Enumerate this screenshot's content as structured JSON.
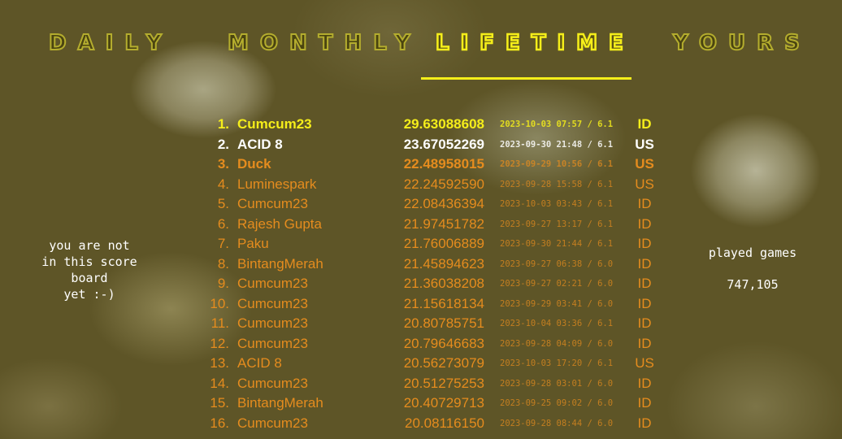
{
  "tabs": [
    {
      "label": "DAILY",
      "active": false
    },
    {
      "label": "MONTHLY",
      "active": false
    },
    {
      "label": "LIFETIME",
      "active": true
    },
    {
      "label": "YOURS",
      "active": false
    }
  ],
  "colors": {
    "active": "#f5ee1a",
    "first": "#f5ee1a",
    "second": "#ffffff",
    "rest": "#e58c1e"
  },
  "status": {
    "line1": "you are not",
    "line2": "in this score",
    "line3": "board",
    "line4": "yet :-)"
  },
  "played": {
    "label": "played games",
    "value": "747,105"
  },
  "rows": [
    {
      "rank": "1.",
      "name": "Cumcum23",
      "score": "29.63088608",
      "date": "2023-10-03 07:57 / 6.1",
      "cc": "ID"
    },
    {
      "rank": "2.",
      "name": "ACID 8",
      "score": "23.67052269",
      "date": "2023-09-30 21:48 / 6.1",
      "cc": "US"
    },
    {
      "rank": "3.",
      "name": "Duck",
      "score": "22.48958015",
      "date": "2023-09-29 10:56 / 6.1",
      "cc": "US"
    },
    {
      "rank": "4.",
      "name": "Luminespark",
      "score": "22.24592590",
      "date": "2023-09-28 15:58 / 6.1",
      "cc": "US"
    },
    {
      "rank": "5.",
      "name": "Cumcum23",
      "score": "22.08436394",
      "date": "2023-10-03 03:43 / 6.1",
      "cc": "ID"
    },
    {
      "rank": "6.",
      "name": "Rajesh Gupta",
      "score": "21.97451782",
      "date": "2023-09-27 13:17 / 6.1",
      "cc": "ID"
    },
    {
      "rank": "7.",
      "name": "Paku",
      "score": "21.76006889",
      "date": "2023-09-30 21:44 / 6.1",
      "cc": "ID"
    },
    {
      "rank": "8.",
      "name": "BintangMerah",
      "score": "21.45894623",
      "date": "2023-09-27 06:38 / 6.0",
      "cc": "ID"
    },
    {
      "rank": "9.",
      "name": "Cumcum23",
      "score": "21.36038208",
      "date": "2023-09-27 02:21 / 6.0",
      "cc": "ID"
    },
    {
      "rank": "10.",
      "name": "Cumcum23",
      "score": "21.15618134",
      "date": "2023-09-29 03:41 / 6.0",
      "cc": "ID"
    },
    {
      "rank": "11.",
      "name": "Cumcum23",
      "score": "20.80785751",
      "date": "2023-10-04 03:36 / 6.1",
      "cc": "ID"
    },
    {
      "rank": "12.",
      "name": "Cumcum23",
      "score": "20.79646683",
      "date": "2023-09-28 04:09 / 6.0",
      "cc": "ID"
    },
    {
      "rank": "13.",
      "name": "ACID 8",
      "score": "20.56273079",
      "date": "2023-10-03 17:20 / 6.1",
      "cc": "US"
    },
    {
      "rank": "14.",
      "name": "Cumcum23",
      "score": "20.51275253",
      "date": "2023-09-28 03:01 / 6.0",
      "cc": "ID"
    },
    {
      "rank": "15.",
      "name": "BintangMerah",
      "score": "20.40729713",
      "date": "2023-09-25 09:02 / 6.0",
      "cc": "ID"
    },
    {
      "rank": "16.",
      "name": "Cumcum23",
      "score": "20.08116150",
      "date": "2023-09-28 08:44 / 6.0",
      "cc": "ID"
    }
  ]
}
